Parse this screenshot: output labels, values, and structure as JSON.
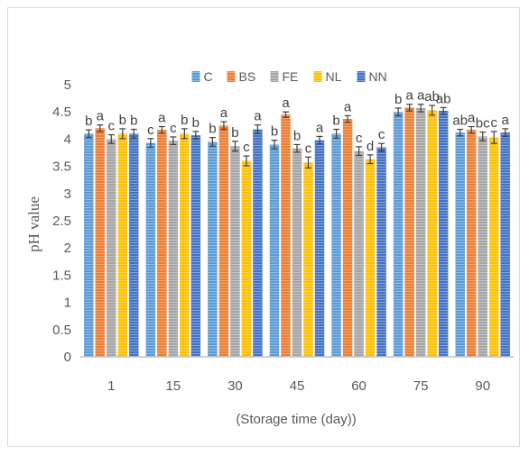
{
  "chart_data": {
    "type": "bar",
    "categories": [
      "1",
      "15",
      "30",
      "45",
      "60",
      "75",
      "90"
    ],
    "xlabel": "(Storage time (day))",
    "ylabel": "pH value",
    "ylim": [
      0,
      5
    ],
    "yticks": [
      "0",
      "0.5",
      "1",
      "1.5",
      "2",
      "2.5",
      "3",
      "3.5",
      "4",
      "4.5",
      "5"
    ],
    "grid": false,
    "legend": "top",
    "error_bars": true,
    "series": [
      {
        "name": "C",
        "color": "#5B9BD5",
        "values": [
          4.1,
          3.93,
          3.95,
          3.9,
          4.1,
          4.5,
          4.12
        ],
        "errors": [
          0.07,
          0.08,
          0.08,
          0.08,
          0.08,
          0.07,
          0.06
        ],
        "labels": [
          "b",
          "c",
          "b",
          "b",
          "b",
          "b",
          "ab"
        ]
      },
      {
        "name": "BS",
        "color": "#ED7D31",
        "values": [
          4.2,
          4.17,
          4.25,
          4.45,
          4.37,
          4.58,
          4.17
        ],
        "errors": [
          0.06,
          0.06,
          0.07,
          0.05,
          0.06,
          0.06,
          0.06
        ],
        "labels": [
          "a",
          "a",
          "a",
          "a",
          "a",
          "a",
          "a"
        ]
      },
      {
        "name": "FE",
        "color": "#A5A5A5",
        "values": [
          4.0,
          3.97,
          3.87,
          3.83,
          3.78,
          4.57,
          4.05
        ],
        "errors": [
          0.08,
          0.07,
          0.09,
          0.07,
          0.08,
          0.07,
          0.08
        ],
        "labels": [
          "c",
          "c",
          "b",
          "b",
          "c",
          "a",
          "bc"
        ]
      },
      {
        "name": "NL",
        "color": "#FFC000",
        "values": [
          4.1,
          4.1,
          3.6,
          3.57,
          3.63,
          4.53,
          4.03
        ],
        "errors": [
          0.09,
          0.09,
          0.09,
          0.1,
          0.08,
          0.09,
          0.11
        ],
        "labels": [
          "b",
          "b",
          "c",
          "c",
          "d",
          "ab",
          "c"
        ]
      },
      {
        "name": "NN",
        "color": "#4472C4",
        "values": [
          4.1,
          4.07,
          4.18,
          3.98,
          3.85,
          4.52,
          4.12
        ],
        "errors": [
          0.08,
          0.07,
          0.08,
          0.07,
          0.07,
          0.06,
          0.07
        ],
        "labels": [
          "b",
          "b",
          "a",
          "a",
          "c",
          "ab",
          "a"
        ]
      }
    ]
  }
}
